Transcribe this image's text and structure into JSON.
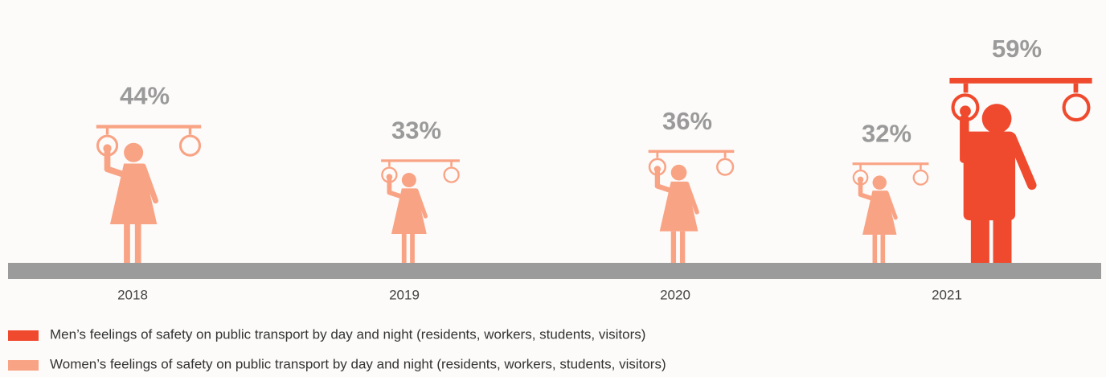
{
  "chart_data": {
    "type": "pictogram",
    "categories": [
      "2018",
      "2019",
      "2020",
      "2021"
    ],
    "series": [
      {
        "name": "Men’s feelings of safety on public transport by day and night (residents, workers, students, visitors)",
        "color": "#f04a2e",
        "values": [
          null,
          null,
          null,
          59
        ],
        "value_labels": [
          null,
          null,
          null,
          "59%"
        ]
      },
      {
        "name": "Women’s feelings of safety on public transport by day and night (residents, workers, students, visitors)",
        "color": "#f9a385",
        "values": [
          44,
          33,
          36,
          32
        ],
        "value_labels": [
          "44%",
          "33%",
          "36%",
          "32%"
        ]
      }
    ]
  }
}
